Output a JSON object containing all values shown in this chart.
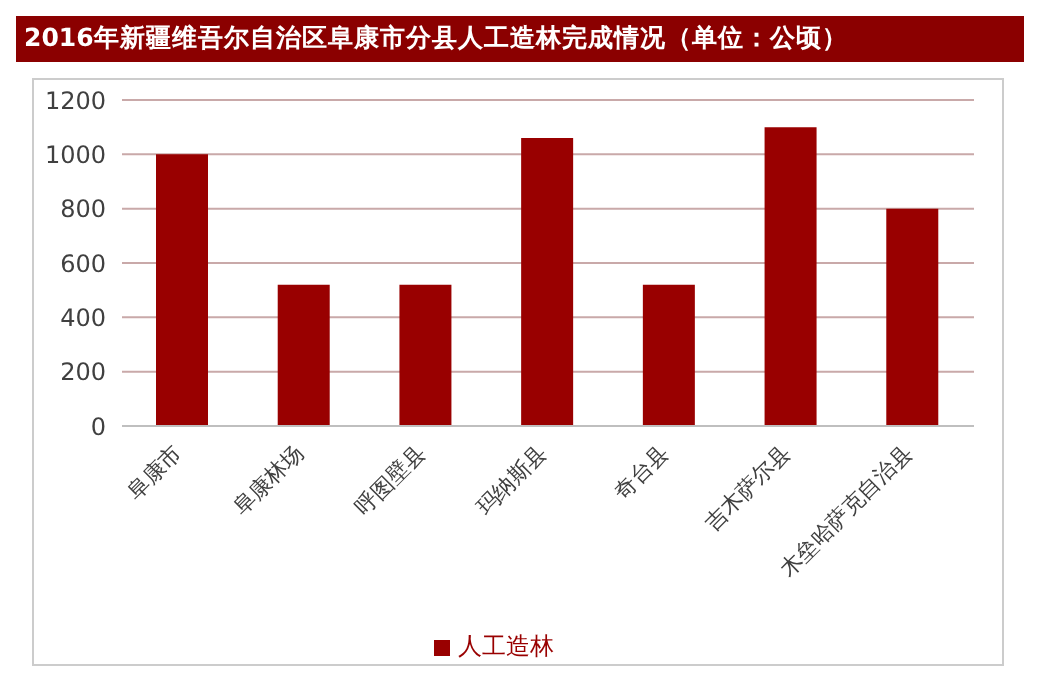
{
  "chart_data": {
    "type": "bar",
    "title": "2016年新疆维吾尔自治区阜康市分县人工造林完成情况（单位：公顷）",
    "categories": [
      "阜康市",
      "阜康林场",
      "呼图壁县",
      "玛纳斯县",
      "奇台县",
      "吉木萨尔县",
      "木垒哈萨克自治县"
    ],
    "series": [
      {
        "name": "人工造林",
        "color": "#990000",
        "values": [
          1000,
          520,
          520,
          1060,
          520,
          1100,
          800
        ]
      }
    ],
    "ylim": [
      0,
      1200
    ],
    "yticks": [
      0,
      200,
      400,
      600,
      800,
      1000,
      1200
    ],
    "grid": "y",
    "legend": "bottom"
  }
}
